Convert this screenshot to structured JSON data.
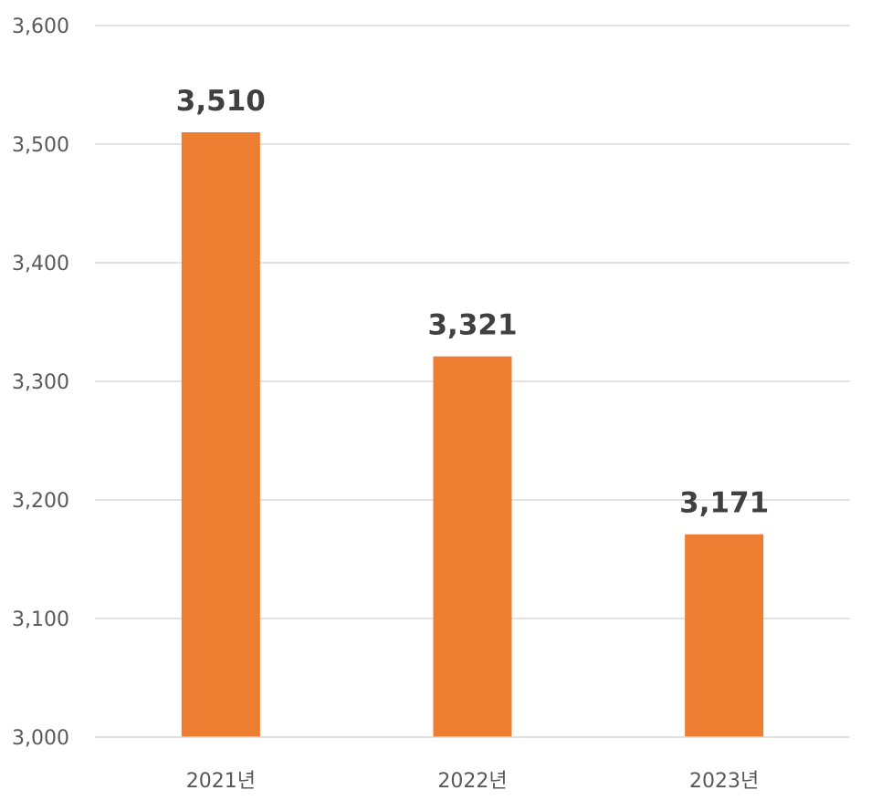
{
  "chart_data": {
    "type": "bar",
    "categories": [
      "2021년",
      "2022년",
      "2023년"
    ],
    "values": [
      3510,
      3321,
      3171
    ],
    "data_labels": [
      "3,510",
      "3,321",
      "3,171"
    ],
    "ylim": [
      3000,
      3600
    ],
    "y_ticks": [
      3000,
      3100,
      3200,
      3300,
      3400,
      3500,
      3600
    ],
    "y_tick_labels": [
      "3,000",
      "3,100",
      "3,200",
      "3,300",
      "3,400",
      "3,500",
      "3,600"
    ],
    "title": "",
    "xlabel": "",
    "ylabel": "",
    "grid": true,
    "legend": "none",
    "bar_color": "#ed7d31"
  }
}
